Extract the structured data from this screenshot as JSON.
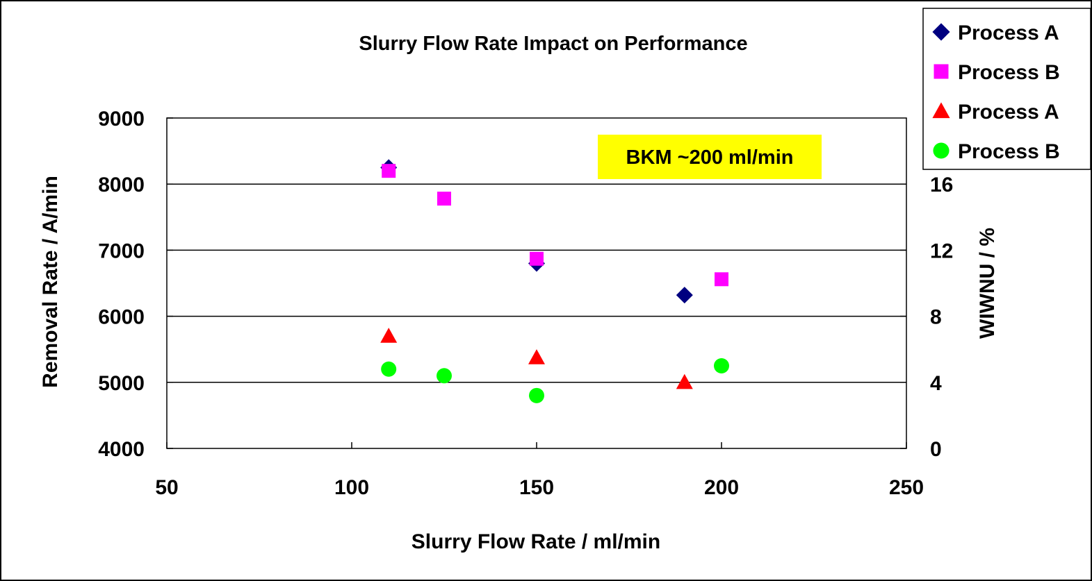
{
  "chart_data": {
    "type": "scatter",
    "title": "Slurry Flow Rate Impact on Performance",
    "xlabel": "Slurry Flow Rate / ml/min",
    "ylabel": "Removal Rate / A/min",
    "y2label": "WIWNU / %",
    "xlim": [
      50,
      250
    ],
    "ylim": [
      4000,
      9000
    ],
    "y2lim": [
      0,
      20
    ],
    "x_ticks": [
      "50",
      "100",
      "150",
      "200",
      "250"
    ],
    "y_ticks": [
      "4000",
      "5000",
      "6000",
      "7000",
      "8000",
      "9000"
    ],
    "y2_ticks": [
      "0",
      "4",
      "8",
      "12",
      "16"
    ],
    "grid": "horizontal",
    "legend_position": "top-right, outside plot",
    "annotation": {
      "text": "BKM ~200 ml/min",
      "background": "#ffff00"
    },
    "series": [
      {
        "name": "Process A",
        "axis": "left",
        "marker": "diamond",
        "color": "#000080",
        "x": [
          110,
          150,
          190
        ],
        "y": [
          8250,
          6800,
          6320
        ]
      },
      {
        "name": "Process B",
        "axis": "left",
        "marker": "square",
        "color": "#ff00ff",
        "x": [
          110,
          125,
          150,
          200
        ],
        "y": [
          8200,
          7780,
          6870,
          6560
        ]
      },
      {
        "name": "Process A",
        "axis": "right",
        "marker": "triangle",
        "color": "#ff0000",
        "x": [
          110,
          150,
          190
        ],
        "y": [
          6.8,
          5.5,
          4.0
        ]
      },
      {
        "name": "Process B",
        "axis": "right",
        "marker": "circle",
        "color": "#00ff00",
        "x": [
          110,
          125,
          150,
          200
        ],
        "y": [
          4.8,
          4.4,
          3.2,
          5.0
        ]
      }
    ]
  }
}
